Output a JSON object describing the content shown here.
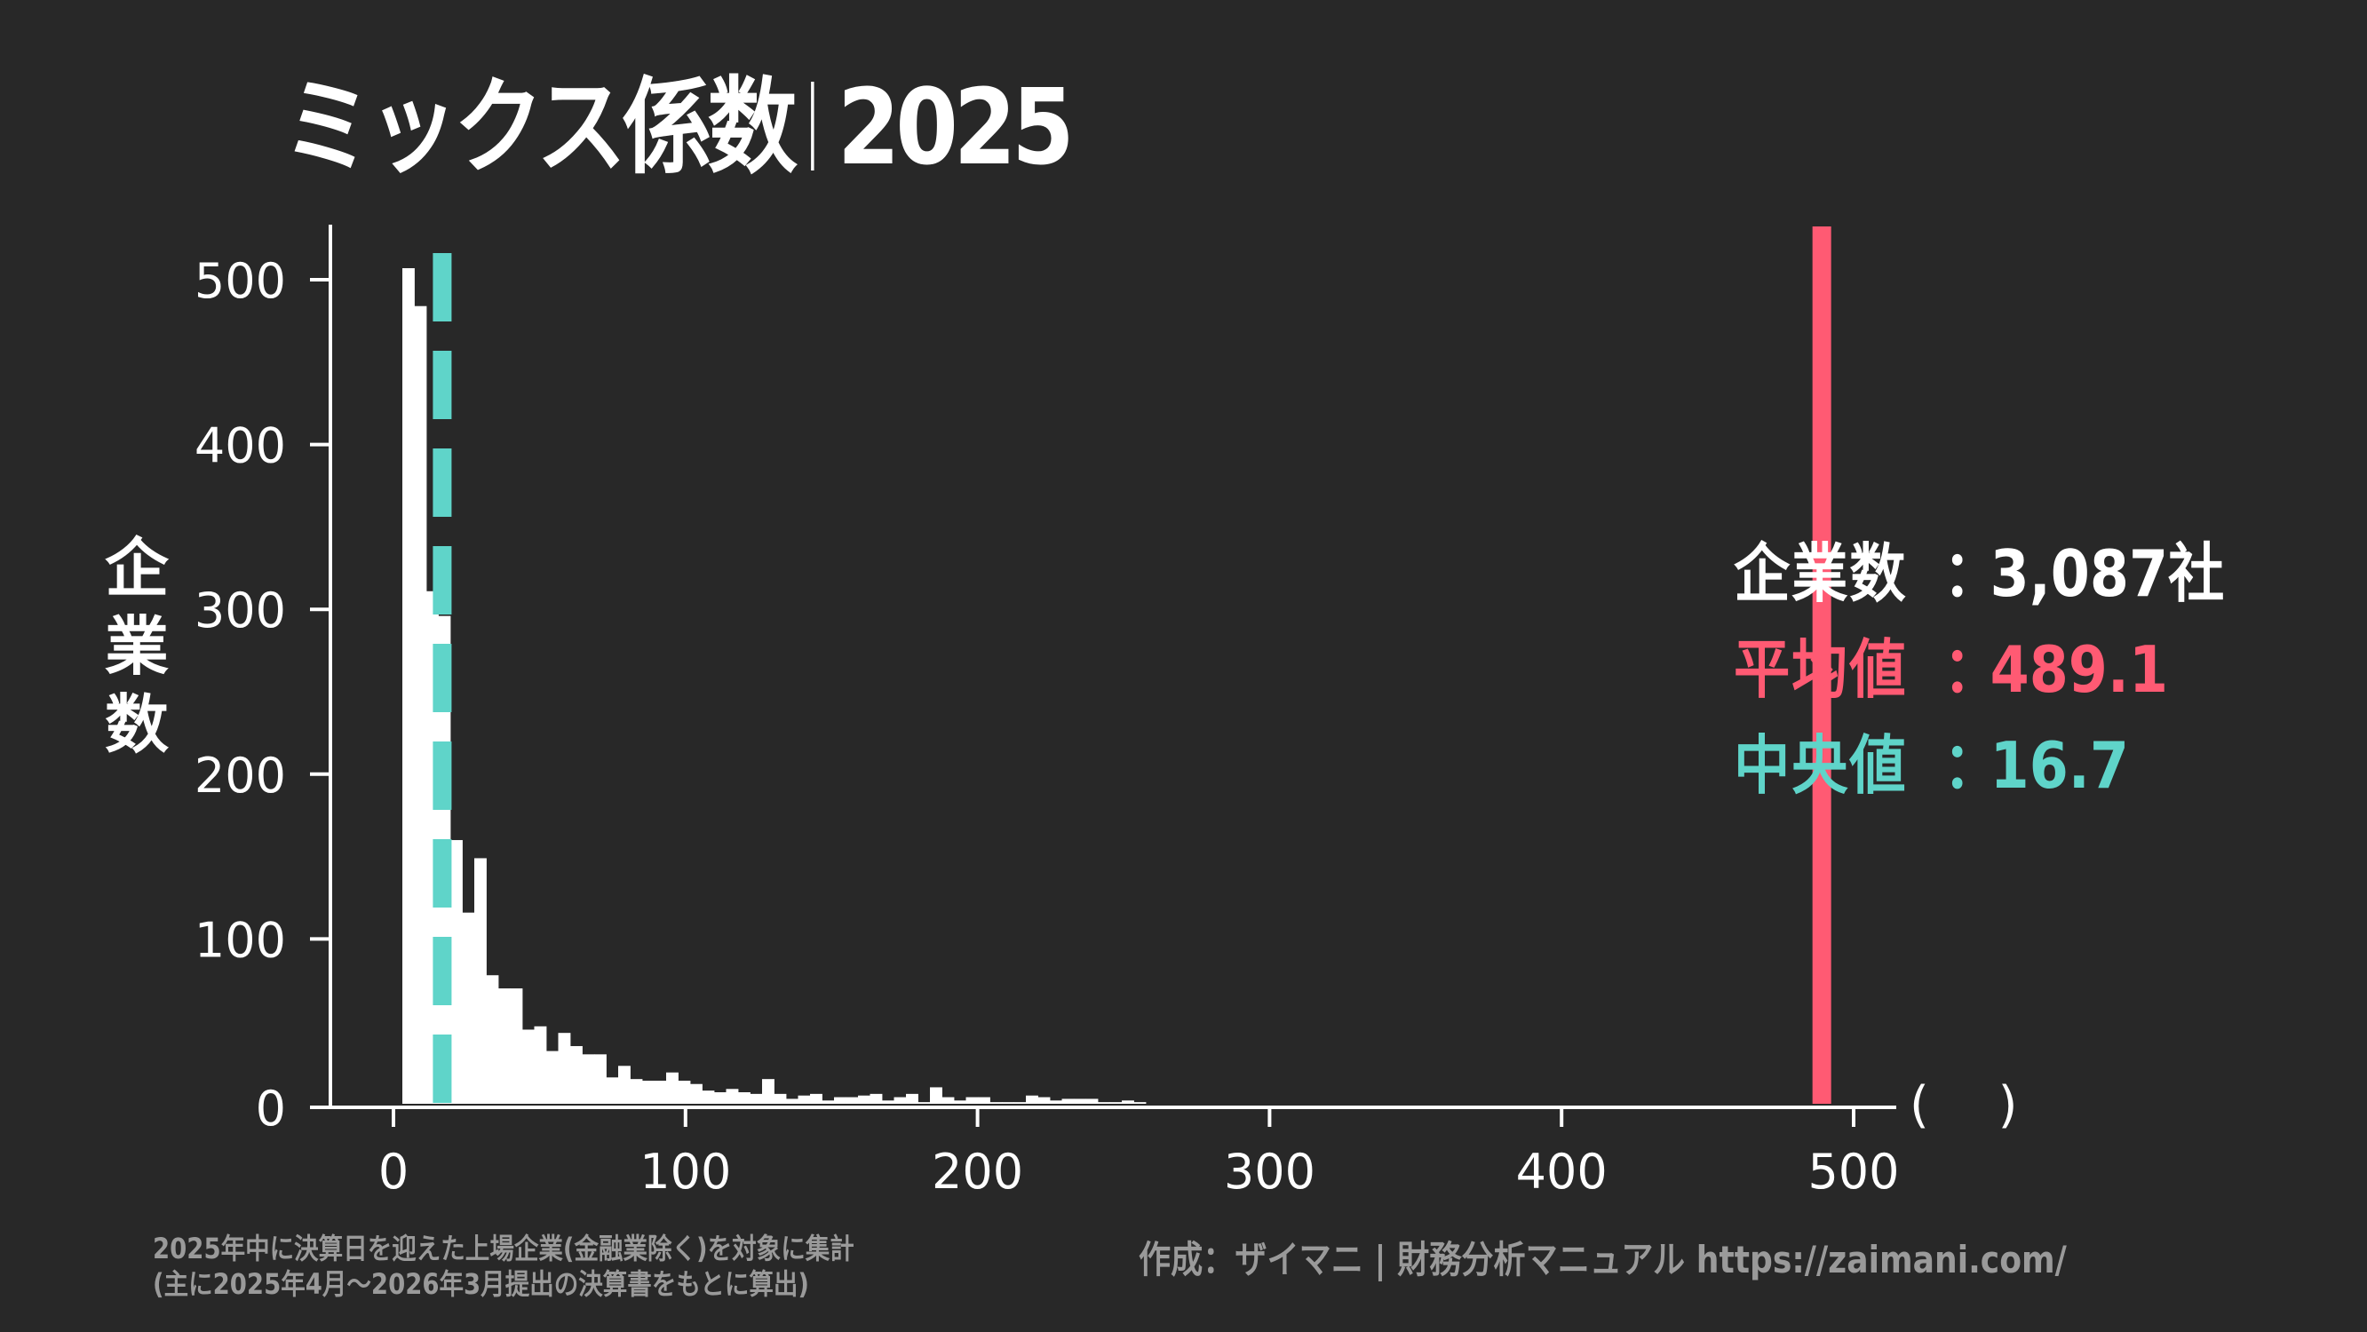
{
  "title": {
    "main": "ミックス係数",
    "year": "2025"
  },
  "y_axis_label": [
    "企",
    "業",
    "数"
  ],
  "x_axis_unit": "(  )",
  "stats": {
    "count": {
      "label": "企業数",
      "colon": "：",
      "value": "3,087社",
      "color": "#ffffff"
    },
    "mean": {
      "label": "平均値",
      "colon": "：",
      "value": "489.1",
      "color": "#ff5a73"
    },
    "median": {
      "label": "中央値",
      "colon": "：",
      "value": "16.7",
      "color": "#5fd4c9"
    }
  },
  "footer": {
    "note_line1": "2025年中に決算日を迎えた上場企業(金融業除く)を対象に集計",
    "note_line2": "(主に2025年4月～2026年3月提出の決算書をもとに算出)",
    "credit": "作成：ザイマニ | 財務分析マニュアル https://zaimani.com/"
  },
  "colors": {
    "background": "#282828",
    "bars": "#ffffff",
    "mean_line": "#ff5a73",
    "median_line": "#5fd4c9",
    "muted_text": "#9a9a9a"
  },
  "chart_data": {
    "type": "bar",
    "subtype": "histogram",
    "title": "ミックス係数｜2025",
    "xlabel": "( )",
    "ylabel": "企業数",
    "xlim": [
      -20,
      515
    ],
    "ylim": [
      0,
      530
    ],
    "x_ticks": [
      0,
      100,
      200,
      300,
      400,
      500
    ],
    "y_ticks": [
      0,
      100,
      200,
      300,
      400,
      500
    ],
    "grid": false,
    "bin_start": 3.04,
    "bin_width": 4.106,
    "counts": [
      507,
      484,
      311,
      296,
      160,
      116,
      149,
      78,
      70,
      70,
      45,
      47,
      32,
      43,
      35,
      30,
      30,
      16,
      23,
      15,
      14,
      14,
      19,
      14,
      12,
      8,
      7,
      9,
      7,
      6,
      15,
      6,
      3,
      5,
      6,
      2,
      4,
      4,
      5,
      6,
      2,
      4,
      6,
      1,
      10,
      4,
      2,
      4,
      4,
      1,
      1,
      1,
      5,
      4,
      2,
      3,
      3,
      3,
      1,
      1,
      2,
      1
    ],
    "reference_lines": [
      {
        "name": "平均値",
        "value": 489.1,
        "style": "solid",
        "color": "#ff5a73"
      },
      {
        "name": "中央値",
        "value": 16.7,
        "style": "dashed",
        "color": "#5fd4c9"
      }
    ],
    "n_companies": 3087
  }
}
